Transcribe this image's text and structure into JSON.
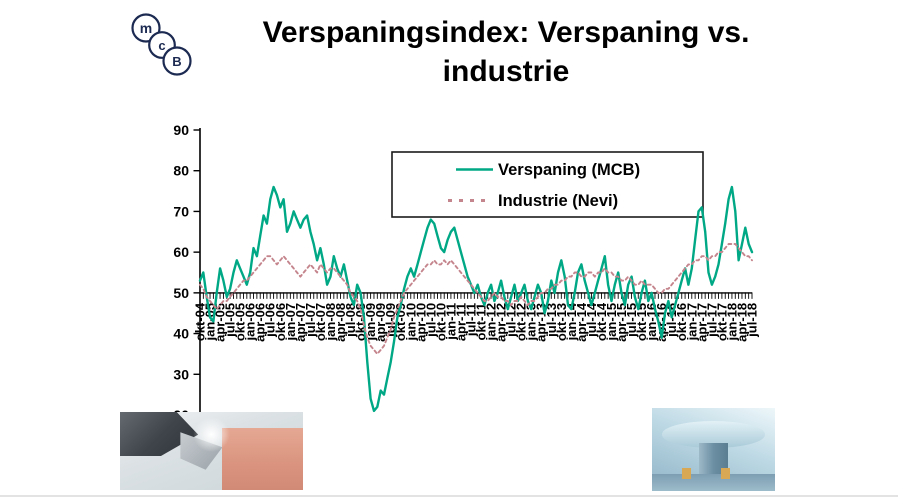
{
  "slide": {
    "title_line1": "Verspaningsindex: Verspaning vs.",
    "title_line2": "industrie",
    "logo_letters": [
      "m",
      "c",
      "B"
    ]
  },
  "legend": {
    "items": [
      {
        "label": "Verspaning (MCB)",
        "color": "#00a886",
        "style": "solid"
      },
      {
        "label": "Industrie (Nevi)",
        "color": "#c5858d",
        "style": "dashed"
      }
    ]
  },
  "chart_data": {
    "type": "line",
    "title": "Verspaningsindex: Verspaning vs. industrie",
    "xlabel": "",
    "ylabel": "",
    "ylim": [
      20,
      90
    ],
    "yticks": [
      20,
      30,
      40,
      50,
      60,
      70,
      80,
      90
    ],
    "x_axis_crosses_at": 50,
    "x_label_rotation": -90,
    "grid": false,
    "legend_position": "top-inside",
    "x_unit": "month",
    "x_range": "okt-04 .. jul-18",
    "x_tick_labels": [
      "okt-04",
      "jan-05",
      "apr-05",
      "jul-05",
      "okt-05",
      "jan-06",
      "apr-06",
      "jul-06",
      "okt-06",
      "jan-07",
      "apr-07",
      "jul-07",
      "okt-07",
      "jan-08",
      "apr-08",
      "jul-08",
      "okt-08",
      "jan-09",
      "apr-09",
      "jul-09",
      "okt-09",
      "jan-10",
      "apr-10",
      "jul-10",
      "okt-10",
      "jan-11",
      "apr-11",
      "jul-11",
      "okt-11",
      "jan-12",
      "apr-12",
      "jul-12",
      "okt-12",
      "jan-13",
      "apr-13",
      "jul-13",
      "okt-13",
      "jan-14",
      "apr-14",
      "jul-14",
      "okt-14",
      "jan-15",
      "apr-15",
      "jul-15",
      "okt-15",
      "jan-16",
      "apr-16",
      "jul-16",
      "okt-16",
      "jan-17",
      "apr-17",
      "jul-17",
      "okt-17",
      "jan-18",
      "apr-18",
      "jul-18"
    ],
    "series": [
      {
        "name": "Verspaning (MCB)",
        "color": "#00a886",
        "dash": null,
        "values": [
          53,
          55,
          49,
          44,
          43,
          50,
          56,
          53,
          49,
          51,
          55,
          58,
          56,
          54,
          52,
          55,
          61,
          59,
          64,
          69,
          67,
          73,
          76,
          74,
          71,
          73,
          65,
          67,
          70,
          68,
          66,
          68,
          69,
          65,
          62,
          58,
          61,
          57,
          52,
          54,
          59,
          56,
          54,
          57,
          53,
          49,
          47,
          52,
          50,
          44,
          33,
          24,
          21,
          22,
          26,
          25,
          29,
          33,
          38,
          44,
          47,
          51,
          54,
          56,
          54,
          57,
          60,
          63,
          66,
          68,
          67,
          64,
          61,
          60,
          63,
          65,
          66,
          63,
          60,
          57,
          54,
          52,
          50,
          52,
          49,
          47,
          50,
          52,
          48,
          50,
          53,
          49,
          46,
          49,
          52,
          48,
          50,
          52,
          48,
          46,
          49,
          52,
          50,
          45,
          48,
          53,
          50,
          55,
          58,
          54,
          47,
          46,
          50,
          55,
          57,
          53,
          50,
          47,
          50,
          53,
          56,
          59,
          52,
          48,
          52,
          55,
          50,
          47,
          52,
          54,
          49,
          46,
          50,
          53,
          48,
          50,
          46,
          43,
          39,
          45,
          48,
          44,
          47,
          50,
          53,
          56,
          52,
          56,
          63,
          70,
          71,
          65,
          55,
          52,
          54,
          57,
          62,
          67,
          73,
          76,
          70,
          58,
          62,
          66,
          62,
          60
        ]
      },
      {
        "name": "Industrie (Nevi)",
        "color": "#c5858d",
        "dash": "3 3.2",
        "values": [
          52,
          51,
          49,
          48,
          47,
          46,
          47,
          48,
          48,
          49,
          50,
          51,
          52,
          53,
          53,
          54,
          55,
          56,
          57,
          58,
          59,
          59,
          58,
          57,
          58,
          59,
          58,
          57,
          56,
          55,
          54,
          55,
          56,
          57,
          56,
          55,
          57,
          56,
          55,
          56,
          56,
          55,
          54,
          53,
          52,
          50,
          49,
          48,
          46,
          42,
          39,
          37,
          36,
          35,
          36,
          37,
          39,
          41,
          44,
          46,
          48,
          50,
          51,
          52,
          53,
          54,
          55,
          56,
          57,
          57,
          58,
          57,
          57,
          58,
          57,
          58,
          57,
          56,
          55,
          54,
          53,
          52,
          51,
          50,
          49,
          48,
          48,
          49,
          50,
          49,
          49,
          48,
          48,
          47,
          48,
          48,
          49,
          48,
          47,
          48,
          48,
          49,
          50,
          50,
          51,
          51,
          52,
          52,
          53,
          53,
          54,
          54,
          55,
          55,
          54,
          54,
          55,
          55,
          54,
          55,
          55,
          56,
          55,
          55,
          54,
          54,
          53,
          53,
          54,
          53,
          52,
          52,
          53,
          52,
          52,
          52,
          51,
          50,
          50,
          51,
          51,
          52,
          53,
          54,
          55,
          56,
          57,
          57,
          58,
          58,
          59,
          59,
          58,
          59,
          59,
          60,
          60,
          61,
          62,
          62,
          62,
          61,
          60,
          59,
          59,
          58
        ]
      }
    ]
  }
}
